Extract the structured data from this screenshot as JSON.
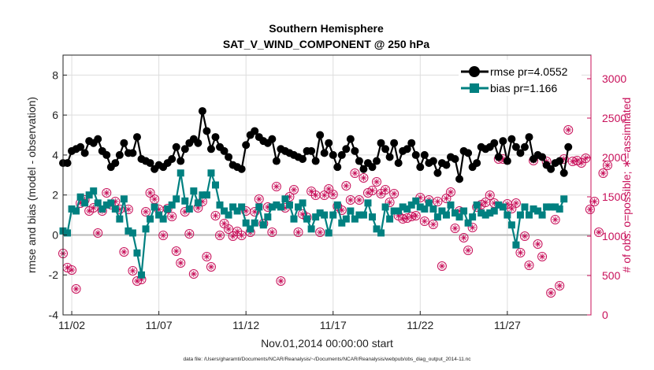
{
  "chart_data": {
    "type": "line",
    "title": "Southern Hemisphere",
    "subtitle": "SAT_V_WIND_COMPONENT @ 250 hPa",
    "xlabel": "Nov.01,2014 00:00:00 start",
    "ylabel": "rmse and bias (model - observation)",
    "y2label": "# of obs: o=possible; ∗=assimilated",
    "footnote": "data file: /Users/gharamti/Documents/NCAR/Reanalysis/~/Documents/NCAR/Reanalysis/webpub/obs_diag_output_2014-11.nc",
    "xlim": [
      0.5,
      30.8
    ],
    "ylim": [
      -4,
      9
    ],
    "y2lim": [
      0,
      3300
    ],
    "x_ticks": [
      1,
      6,
      11,
      16,
      21,
      26
    ],
    "x_tick_labels": [
      "11/02",
      "11/07",
      "11/12",
      "11/17",
      "11/22",
      "11/27"
    ],
    "y_ticks": [
      -4,
      -2,
      0,
      2,
      4,
      6,
      8
    ],
    "y2_ticks": [
      0,
      500,
      1000,
      1500,
      2000,
      2500,
      3000
    ],
    "grid": true,
    "legend_position": "top-right",
    "x_step_days": 0.25,
    "series": [
      {
        "name": "rmse pr=4.0552",
        "color": "#000000",
        "axis": "left",
        "values": [
          3.6,
          3.6,
          4.2,
          4.3,
          4.4,
          4.1,
          4.7,
          4.6,
          4.8,
          4.2,
          4.0,
          3.4,
          3.6,
          4.0,
          4.6,
          4.1,
          4.1,
          4.9,
          3.8,
          3.7,
          3.6,
          3.3,
          3.5,
          3.4,
          3.6,
          3.8,
          4.4,
          3.7,
          4.3,
          4.6,
          4.8,
          4.6,
          6.2,
          5.2,
          4.3,
          4.9,
          4.4,
          4.2,
          3.9,
          3.5,
          3.4,
          3.3,
          4.5,
          5.0,
          5.2,
          4.9,
          4.7,
          4.6,
          4.8,
          3.7,
          4.3,
          4.2,
          4.1,
          4.0,
          3.9,
          3.8,
          4.2,
          4.2,
          3.7,
          5.0,
          4.1,
          4.6,
          4.0,
          3.4,
          4.0,
          4.3,
          4.8,
          4.2,
          3.7,
          3.3,
          3.6,
          3.4,
          3.7,
          4.6,
          4.3,
          3.9,
          4.6,
          3.6,
          4.2,
          4.3,
          4.6,
          4.0,
          3.4,
          4.0,
          3.6,
          3.7,
          3.1,
          3.6,
          3.5,
          3.9,
          3.8,
          2.8,
          4.2,
          4.1,
          3.4,
          3.6,
          4.4,
          4.3,
          4.4,
          4.6,
          3.9,
          4.7,
          3.7,
          4.8,
          4.4,
          4.1,
          4.4,
          4.9,
          3.8,
          4.0,
          3.9,
          3.5,
          3.3,
          3.6,
          3.7,
          3.1,
          4.4
        ],
        "marker": "circle"
      },
      {
        "name": "bias pr=1.166",
        "color": "#008080",
        "axis": "left",
        "values": [
          0.2,
          0.1,
          1.3,
          1.2,
          1.9,
          1.6,
          2.0,
          2.2,
          1.6,
          1.3,
          1.5,
          1.6,
          1.3,
          0.8,
          1.8,
          0.2,
          0.1,
          -0.9,
          -2.0,
          0.3,
          0.8,
          1.4,
          1.0,
          0.8,
          1.3,
          1.5,
          1.8,
          3.1,
          1.7,
          1.3,
          2.2,
          1.6,
          2.0,
          2.0,
          3.1,
          2.5,
          1.5,
          1.2,
          1.0,
          1.4,
          1.2,
          1.4,
          0.6,
          0.3,
          0.6,
          1.4,
          0.5,
          0.9,
          1.4,
          1.5,
          1.4,
          1.8,
          1.5,
          0.8,
          1.4,
          1.6,
          0.8,
          0.3,
          0.9,
          1.1,
          1.0,
          0.1,
          1.0,
          1.5,
          0.6,
          0.8,
          1.2,
          0.8,
          1.0,
          1.0,
          1.6,
          0.9,
          0.3,
          0.1,
          1.4,
          0.8,
          1.2,
          1.2,
          1.4,
          1.3,
          1.5,
          1.7,
          1.4,
          1.3,
          1.6,
          1.3,
          0.9,
          1.2,
          1.0,
          1.5,
          1.1,
          0.9,
          1.2,
          0.6,
          0.9,
          1.5,
          1.1,
          1.0,
          1.1,
          1.2,
          1.5,
          1.4,
          1.0,
          0.5,
          -0.5,
          1.0,
          1.4,
          1.0,
          1.3,
          1.2,
          1.0,
          1.4,
          1.4,
          1.4,
          1.3,
          1.8
        ],
        "marker": "square"
      },
      {
        "name": "",
        "color": "#c8105a",
        "axis": "right",
        "values": [
          780,
          600,
          570,
          330,
          1420,
          1460,
          1320,
          1360,
          1040,
          1320,
          1550,
          1400,
          1440,
          1340,
          800,
          1340,
          560,
          430,
          450,
          1310,
          1550,
          1470,
          1340,
          1010,
          1350,
          1250,
          810,
          660,
          1310,
          1030,
          520,
          1360,
          1440,
          740,
          610,
          1260,
          1010,
          1160,
          1090,
          1000,
          1060,
          1010,
          1320,
          1050,
          1310,
          1470,
          1160,
          1370,
          1050,
          1630,
          430,
          1360,
          1500,
          1590,
          1050,
          1280,
          1240,
          1570,
          1520,
          1050,
          1520,
          1600,
          1530,
          1380,
          1330,
          1640,
          1460,
          1800,
          1460,
          1740,
          1550,
          1580,
          1690,
          1540,
          1590,
          1430,
          1540,
          1260,
          1220,
          1230,
          1250,
          1260,
          1490,
          1190,
          1460,
          1150,
          1440,
          620,
          1480,
          1560,
          1100,
          1320,
          980,
          820,
          1110,
          1370,
          1400,
          1430,
          1520,
          1420,
          1980,
          1980,
          1410,
          1350,
          1420,
          790,
          1000,
          630,
          1960,
          900,
          740,
          1950,
          280,
          1210,
          370,
          1980,
          2350,
          1950,
          1960,
          1930,
          1990,
          1340,
          1440,
          1050,
          1800,
          1900
        ],
        "marker": "circle-asterisk"
      }
    ]
  }
}
